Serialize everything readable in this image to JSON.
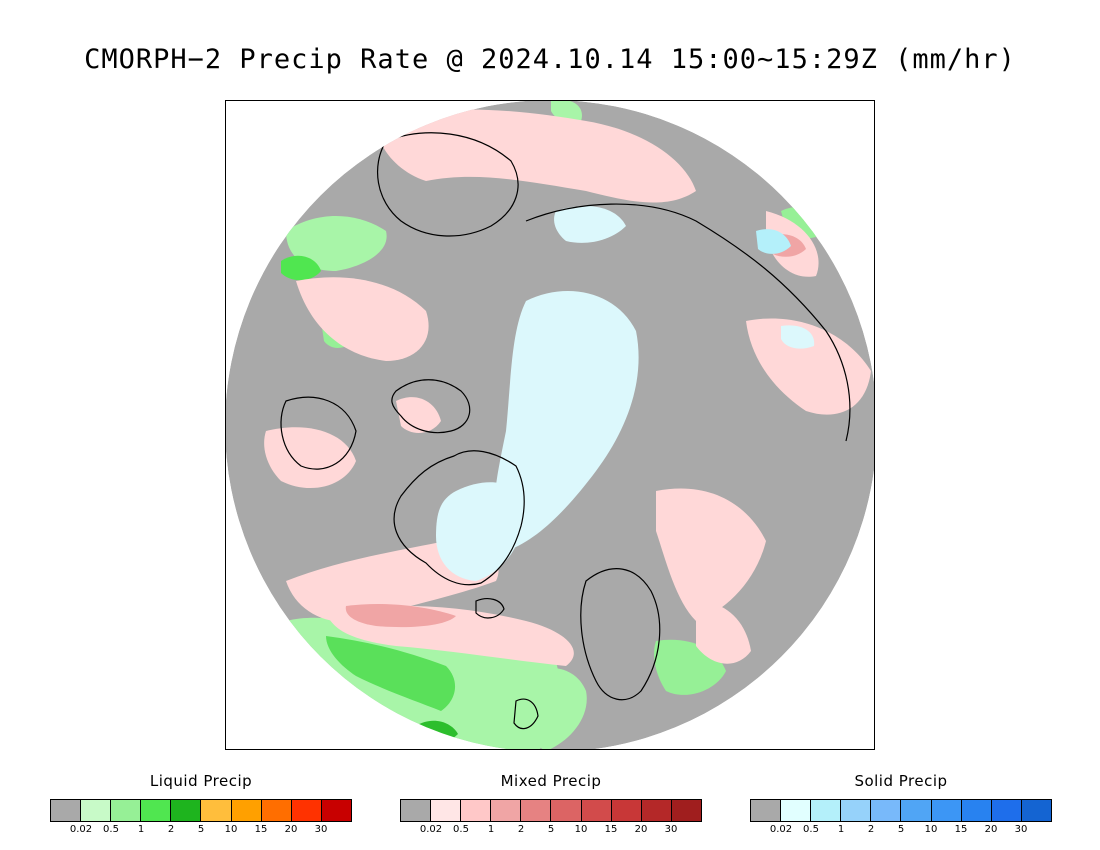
{
  "title": "CMORPH−2 Precip Rate @ 2024.10.14 15:00~15:29Z (mm/hr)",
  "map": {
    "projection": "north polar stereographic",
    "no_precip_color": "#a9a9a9",
    "background_color": "#ffffff",
    "coastline_color": "#000000"
  },
  "legends": [
    {
      "id": "liquid",
      "title": "Liquid Precip",
      "ticks": [
        "0.02",
        "0.5",
        "1",
        "2",
        "5",
        "10",
        "15",
        "20",
        "30"
      ],
      "colors": [
        "#a9a9a9",
        "#c8fac8",
        "#96f096",
        "#50e650",
        "#1eb41e",
        "#ffbe3c",
        "#ffa000",
        "#ff6e00",
        "#ff3200",
        "#c80000"
      ]
    },
    {
      "id": "mixed",
      "title": "Mixed Precip",
      "ticks": [
        "0.02",
        "0.5",
        "1",
        "2",
        "5",
        "10",
        "15",
        "20",
        "30"
      ],
      "colors": [
        "#a9a9a9",
        "#ffe6e6",
        "#ffc8c8",
        "#f0a5a5",
        "#e68282",
        "#dc6464",
        "#d24b4b",
        "#c83737",
        "#b42828",
        "#a01e1e"
      ]
    },
    {
      "id": "solid",
      "title": "Solid Precip",
      "ticks": [
        "0.02",
        "0.5",
        "1",
        "2",
        "5",
        "10",
        "15",
        "20",
        "30"
      ],
      "colors": [
        "#a9a9a9",
        "#e1ffff",
        "#b4f0fa",
        "#96d2fa",
        "#78b9fa",
        "#50a5f5",
        "#3c96f5",
        "#2882f0",
        "#1e6eeb",
        "#1464d2"
      ]
    }
  ]
}
